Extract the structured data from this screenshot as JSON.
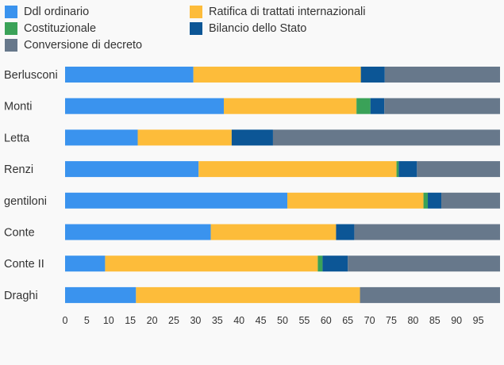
{
  "chart_data": {
    "type": "bar",
    "orientation": "horizontal",
    "stacked": true,
    "categories": [
      "Berlusconi",
      "Monti",
      "Letta",
      "Renzi",
      "gentiloni",
      "Conte",
      "Conte II",
      "Draghi"
    ],
    "series": [
      {
        "name": "Ddl ordinario",
        "color": "#3a93ee",
        "values": [
          29.5,
          36.5,
          16.7,
          30.7,
          51.1,
          33.5,
          9.2,
          16.3
        ]
      },
      {
        "name": "Ratifica di trattati internazionali",
        "color": "#fdbc3a",
        "values": [
          38.5,
          30.5,
          21.6,
          45.5,
          31.3,
          28.8,
          48.9,
          51.5
        ]
      },
      {
        "name": "Costituzionale",
        "color": "#3aa258",
        "values": [
          0,
          3.2,
          0,
          0.5,
          1.0,
          0,
          1.1,
          0
        ]
      },
      {
        "name": "Bilancio dello Stato",
        "color": "#0c5696",
        "values": [
          5.5,
          3.2,
          9.5,
          4.2,
          3.1,
          4.2,
          5.8,
          0
        ]
      },
      {
        "name": "Conversione di decreto",
        "color": "#67788b",
        "values": [
          26.5,
          26.6,
          52.2,
          19.1,
          13.5,
          33.5,
          35.0,
          32.2
        ]
      }
    ],
    "xticks": [
      0,
      5,
      10,
      15,
      20,
      25,
      30,
      35,
      40,
      45,
      50,
      55,
      60,
      65,
      70,
      75,
      80,
      85,
      90,
      95
    ],
    "xlim": [
      0,
      100
    ],
    "grid": false,
    "legend_position": "top-left"
  }
}
